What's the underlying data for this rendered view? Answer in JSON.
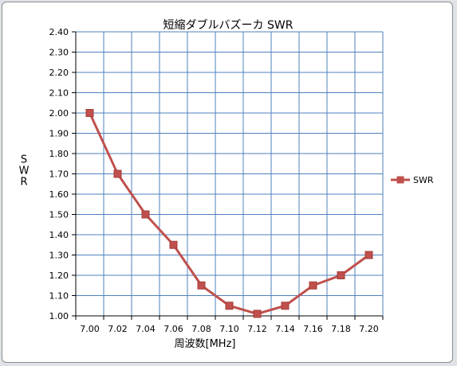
{
  "chart_data": {
    "type": "line",
    "title": "短縮ダブルバズーカ SWR",
    "xlabel": "周波数[MHz]",
    "ylabel": "SWR",
    "categories": [
      "7.00",
      "7.02",
      "7.04",
      "7.06",
      "7.08",
      "7.10",
      "7.12",
      "7.14",
      "7.16",
      "7.18",
      "7.20"
    ],
    "series": [
      {
        "name": "SWR",
        "values": [
          2.0,
          1.7,
          1.5,
          1.35,
          1.15,
          1.05,
          1.01,
          1.05,
          1.15,
          1.2,
          1.3
        ],
        "color": "#c0504d",
        "marker": "square"
      }
    ],
    "ylim": [
      1.0,
      2.4
    ],
    "ytick_step": 0.1,
    "ytick_labels": [
      "1.00",
      "1.10",
      "1.20",
      "1.30",
      "1.40",
      "1.50",
      "1.60",
      "1.70",
      "1.80",
      "1.90",
      "2.00",
      "2.10",
      "2.20",
      "2.30",
      "2.40"
    ],
    "grid": true,
    "gridline_color": "#4f81bd",
    "legend_position": "right"
  }
}
